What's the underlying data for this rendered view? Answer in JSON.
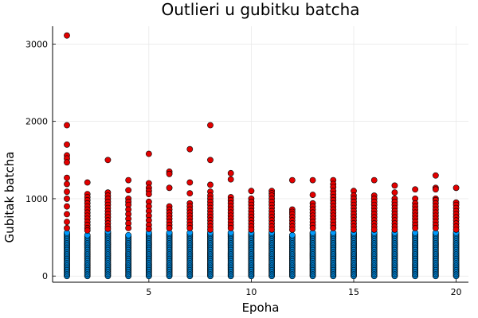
{
  "chart_data": {
    "type": "scatter",
    "title": "Outlieri u gubitku batcha",
    "xlabel": "Epoha",
    "ylabel": "Gubitak batcha",
    "xlim": [
      0.3,
      20.6
    ],
    "ylim": [
      -80,
      3230
    ],
    "xticks": [
      5,
      10,
      15,
      20
    ],
    "yticks": [
      0,
      1000,
      2000,
      3000
    ],
    "grid": true,
    "legend": "none",
    "colors": {
      "inlier": "#009AFA",
      "outlier": "#E30000",
      "marker_edge": "#000000"
    },
    "series": [
      {
        "role": "inlier",
        "epochs": [
          1,
          2,
          3,
          4,
          5,
          6,
          7,
          8,
          9,
          10,
          11,
          12,
          13,
          14,
          15,
          16,
          17,
          18,
          19,
          20
        ],
        "range_min": [
          0,
          0,
          0,
          0,
          0,
          0,
          0,
          0,
          0,
          0,
          0,
          0,
          0,
          0,
          0,
          0,
          0,
          0,
          0,
          0
        ],
        "range_max": [
          560,
          540,
          590,
          540,
          560,
          560,
          570,
          560,
          560,
          560,
          560,
          540,
          570,
          560,
          560,
          560,
          560,
          560,
          560,
          560
        ]
      },
      {
        "role": "outlier",
        "points": [
          [
            1,
            3110
          ],
          [
            1,
            1950
          ],
          [
            1,
            1700
          ],
          [
            1,
            1560
          ],
          [
            1,
            1520
          ],
          [
            1,
            1470
          ],
          [
            1,
            1270
          ],
          [
            1,
            1190
          ],
          [
            1,
            1090
          ],
          [
            1,
            1000
          ],
          [
            1,
            900
          ],
          [
            1,
            800
          ],
          [
            1,
            700
          ],
          [
            1,
            620
          ],
          [
            2,
            1210
          ],
          [
            2,
            1060
          ],
          [
            2,
            1020
          ],
          [
            2,
            980
          ],
          [
            2,
            940
          ],
          [
            2,
            900
          ],
          [
            2,
            860
          ],
          [
            2,
            820
          ],
          [
            2,
            780
          ],
          [
            2,
            740
          ],
          [
            2,
            700
          ],
          [
            2,
            660
          ],
          [
            2,
            620
          ],
          [
            2,
            590
          ],
          [
            3,
            1500
          ],
          [
            3,
            1080
          ],
          [
            3,
            1040
          ],
          [
            3,
            1000
          ],
          [
            3,
            960
          ],
          [
            3,
            920
          ],
          [
            3,
            880
          ],
          [
            3,
            840
          ],
          [
            3,
            800
          ],
          [
            3,
            760
          ],
          [
            3,
            720
          ],
          [
            3,
            680
          ],
          [
            3,
            640
          ],
          [
            3,
            610
          ],
          [
            4,
            1240
          ],
          [
            4,
            1110
          ],
          [
            4,
            1000
          ],
          [
            4,
            960
          ],
          [
            4,
            920
          ],
          [
            4,
            860
          ],
          [
            4,
            800
          ],
          [
            4,
            740
          ],
          [
            4,
            680
          ],
          [
            4,
            620
          ],
          [
            5,
            1580
          ],
          [
            5,
            1200
          ],
          [
            5,
            1140
          ],
          [
            5,
            1100
          ],
          [
            5,
            1060
          ],
          [
            5,
            960
          ],
          [
            5,
            900
          ],
          [
            5,
            840
          ],
          [
            5,
            780
          ],
          [
            5,
            720
          ],
          [
            5,
            660
          ],
          [
            5,
            610
          ],
          [
            6,
            1350
          ],
          [
            6,
            1320
          ],
          [
            6,
            1140
          ],
          [
            6,
            900
          ],
          [
            6,
            860
          ],
          [
            6,
            820
          ],
          [
            6,
            780
          ],
          [
            6,
            740
          ],
          [
            6,
            700
          ],
          [
            6,
            660
          ],
          [
            6,
            620
          ],
          [
            7,
            1640
          ],
          [
            7,
            1210
          ],
          [
            7,
            1070
          ],
          [
            7,
            940
          ],
          [
            7,
            900
          ],
          [
            7,
            860
          ],
          [
            7,
            820
          ],
          [
            7,
            780
          ],
          [
            7,
            740
          ],
          [
            7,
            700
          ],
          [
            7,
            660
          ],
          [
            7,
            620
          ],
          [
            8,
            1950
          ],
          [
            8,
            1500
          ],
          [
            8,
            1180
          ],
          [
            8,
            1090
          ],
          [
            8,
            1040
          ],
          [
            8,
            1000
          ],
          [
            8,
            960
          ],
          [
            8,
            920
          ],
          [
            8,
            880
          ],
          [
            8,
            840
          ],
          [
            8,
            800
          ],
          [
            8,
            760
          ],
          [
            8,
            720
          ],
          [
            8,
            680
          ],
          [
            8,
            640
          ],
          [
            8,
            600
          ],
          [
            9,
            1330
          ],
          [
            9,
            1250
          ],
          [
            9,
            1020
          ],
          [
            9,
            980
          ],
          [
            9,
            940
          ],
          [
            9,
            900
          ],
          [
            9,
            860
          ],
          [
            9,
            820
          ],
          [
            9,
            780
          ],
          [
            9,
            740
          ],
          [
            9,
            700
          ],
          [
            9,
            660
          ],
          [
            9,
            620
          ],
          [
            10,
            1100
          ],
          [
            10,
            1000
          ],
          [
            10,
            960
          ],
          [
            10,
            920
          ],
          [
            10,
            880
          ],
          [
            10,
            840
          ],
          [
            10,
            800
          ],
          [
            10,
            760
          ],
          [
            10,
            720
          ],
          [
            10,
            680
          ],
          [
            10,
            640
          ],
          [
            10,
            600
          ],
          [
            11,
            1100
          ],
          [
            11,
            1070
          ],
          [
            11,
            1040
          ],
          [
            11,
            1000
          ],
          [
            11,
            960
          ],
          [
            11,
            920
          ],
          [
            11,
            880
          ],
          [
            11,
            840
          ],
          [
            11,
            800
          ],
          [
            11,
            760
          ],
          [
            11,
            720
          ],
          [
            11,
            680
          ],
          [
            11,
            640
          ],
          [
            11,
            600
          ],
          [
            12,
            1240
          ],
          [
            12,
            860
          ],
          [
            12,
            830
          ],
          [
            12,
            800
          ],
          [
            12,
            760
          ],
          [
            12,
            720
          ],
          [
            12,
            680
          ],
          [
            12,
            640
          ],
          [
            12,
            600
          ],
          [
            13,
            1240
          ],
          [
            13,
            1050
          ],
          [
            13,
            940
          ],
          [
            13,
            900
          ],
          [
            13,
            860
          ],
          [
            13,
            820
          ],
          [
            13,
            780
          ],
          [
            13,
            740
          ],
          [
            13,
            700
          ],
          [
            13,
            660
          ],
          [
            13,
            620
          ],
          [
            14,
            1240
          ],
          [
            14,
            1190
          ],
          [
            14,
            1150
          ],
          [
            14,
            1100
          ],
          [
            14,
            1060
          ],
          [
            14,
            1020
          ],
          [
            14,
            980
          ],
          [
            14,
            940
          ],
          [
            14,
            900
          ],
          [
            14,
            860
          ],
          [
            14,
            820
          ],
          [
            14,
            780
          ],
          [
            14,
            740
          ],
          [
            14,
            700
          ],
          [
            14,
            660
          ],
          [
            14,
            620
          ],
          [
            15,
            1100
          ],
          [
            15,
            1040
          ],
          [
            15,
            1000
          ],
          [
            15,
            960
          ],
          [
            15,
            920
          ],
          [
            15,
            880
          ],
          [
            15,
            840
          ],
          [
            15,
            800
          ],
          [
            15,
            760
          ],
          [
            15,
            720
          ],
          [
            15,
            680
          ],
          [
            15,
            640
          ],
          [
            15,
            600
          ],
          [
            16,
            1240
          ],
          [
            16,
            1040
          ],
          [
            16,
            1000
          ],
          [
            16,
            960
          ],
          [
            16,
            920
          ],
          [
            16,
            880
          ],
          [
            16,
            840
          ],
          [
            16,
            800
          ],
          [
            16,
            760
          ],
          [
            16,
            720
          ],
          [
            16,
            680
          ],
          [
            16,
            640
          ],
          [
            16,
            600
          ],
          [
            17,
            1170
          ],
          [
            17,
            1080
          ],
          [
            17,
            1000
          ],
          [
            17,
            960
          ],
          [
            17,
            920
          ],
          [
            17,
            880
          ],
          [
            17,
            840
          ],
          [
            17,
            800
          ],
          [
            17,
            760
          ],
          [
            17,
            720
          ],
          [
            17,
            680
          ],
          [
            17,
            640
          ],
          [
            17,
            600
          ],
          [
            18,
            1120
          ],
          [
            18,
            1000
          ],
          [
            18,
            940
          ],
          [
            18,
            900
          ],
          [
            18,
            860
          ],
          [
            18,
            820
          ],
          [
            18,
            780
          ],
          [
            18,
            740
          ],
          [
            18,
            700
          ],
          [
            18,
            660
          ],
          [
            18,
            620
          ],
          [
            19,
            1300
          ],
          [
            19,
            1140
          ],
          [
            19,
            1120
          ],
          [
            19,
            1000
          ],
          [
            19,
            980
          ],
          [
            19,
            940
          ],
          [
            19,
            900
          ],
          [
            19,
            860
          ],
          [
            19,
            820
          ],
          [
            19,
            780
          ],
          [
            19,
            740
          ],
          [
            19,
            700
          ],
          [
            19,
            660
          ],
          [
            19,
            620
          ],
          [
            20,
            1140
          ],
          [
            20,
            950
          ],
          [
            20,
            920
          ],
          [
            20,
            880
          ],
          [
            20,
            840
          ],
          [
            20,
            800
          ],
          [
            20,
            760
          ],
          [
            20,
            720
          ],
          [
            20,
            680
          ],
          [
            20,
            640
          ],
          [
            20,
            600
          ]
        ]
      }
    ]
  }
}
